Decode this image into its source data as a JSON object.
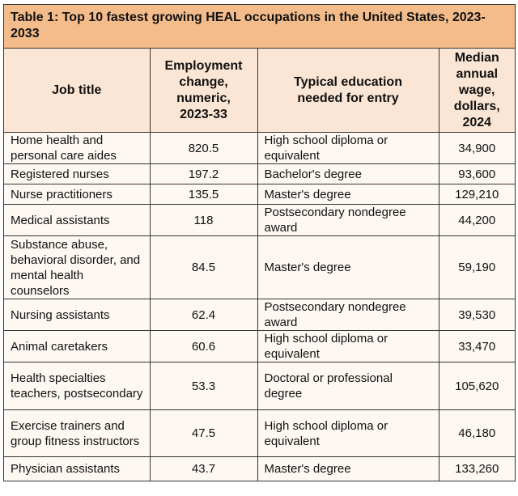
{
  "title": "Table 1: Top 10 fastest growing HEAL occupations in the United States, 2023-2033",
  "colors": {
    "title_bg": "#F4BC8A",
    "header_bg": "#FBE6D5",
    "body_bg": "#FEF8F3"
  },
  "headers": [
    "Job title",
    "Employment change, numeric, 2023-33",
    "Typical education needed for entry",
    "Median annual wage, dollars, 2024"
  ],
  "rows": [
    [
      "Home health and personal care aides",
      "820.5",
      "High school diploma or equivalent",
      "34,900"
    ],
    [
      "Registered nurses",
      "197.2",
      "Bachelor's degree",
      "93,600"
    ],
    [
      "Nurse practitioners",
      "135.5",
      "Master's degree",
      "129,210"
    ],
    [
      "Medical assistants",
      "118",
      "Postsecondary nondegree award",
      "44,200"
    ],
    [
      "Substance abuse, behavioral disorder, and mental health counselors",
      "84.5",
      "Master's degree",
      "59,190"
    ],
    [
      "Nursing assistants",
      "62.4",
      "Postsecondary nondegree award",
      "39,530"
    ],
    [
      "Animal caretakers",
      "60.6",
      "High school diploma or equivalent",
      "33,470"
    ],
    [
      "Health specialties teachers, postsecondary",
      "53.3",
      "Doctoral or professional degree",
      "105,620"
    ],
    [
      "Exercise trainers and group fitness instructors",
      "47.5",
      "High school diploma or equivalent",
      "46,180"
    ],
    [
      "Physician assistants",
      "43.7",
      "Master's degree",
      "133,260"
    ]
  ]
}
